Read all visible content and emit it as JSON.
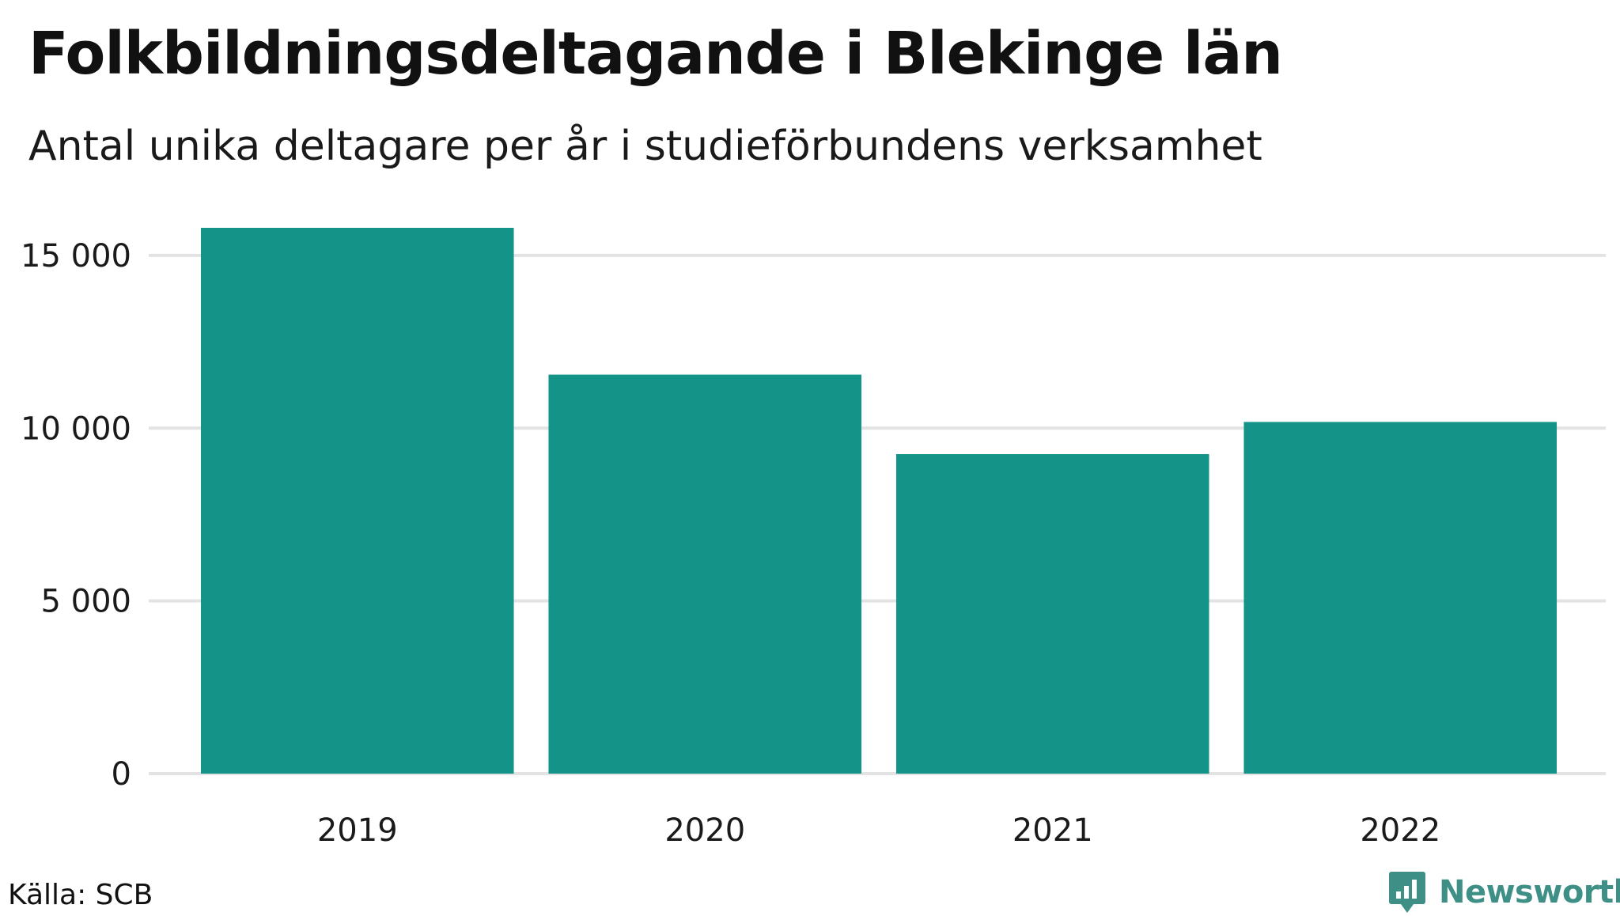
{
  "header": {
    "title": "Folkbildningsdeltagande i Blekinge län",
    "subtitle": "Antal unika deltagare per år i studieförbundens verksamhet"
  },
  "footer": {
    "source": "Källa: SCB",
    "brand": "Newsworthy",
    "brand_icon": "bar-chart-speech-bubble-icon"
  },
  "colors": {
    "bar": "#149488",
    "grid": "#e3e3e3",
    "brand": "#3e8f86"
  },
  "chart_data": {
    "type": "bar",
    "title": "Folkbildningsdeltagande i Blekinge län",
    "subtitle": "Antal unika deltagare per år i studieförbundens verksamhet",
    "categories": [
      "2019",
      "2020",
      "2021",
      "2022"
    ],
    "values": [
      15800,
      11550,
      9250,
      10180
    ],
    "xlabel": "",
    "ylabel": "",
    "ylim": [
      0,
      15800
    ],
    "yticks": [
      0,
      5000,
      10000,
      15000
    ],
    "ytick_labels": [
      "0",
      "5 000",
      "10 000",
      "15 000"
    ],
    "grid": true,
    "legend": "none",
    "source": "Källa: SCB"
  }
}
